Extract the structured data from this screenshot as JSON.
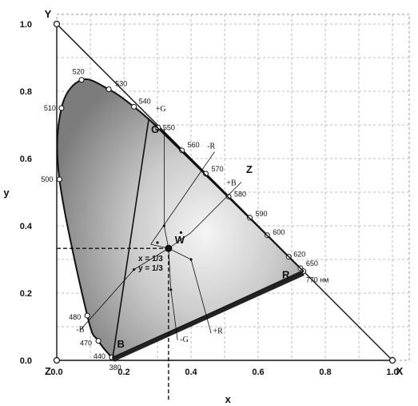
{
  "chart_data": {
    "type": "scatter",
    "title": "",
    "xlabel": "x",
    "ylabel": "y",
    "xlim": [
      0,
      1.05
    ],
    "ylim": [
      0,
      1.0
    ],
    "grid": true,
    "x_ticks": [
      "0.0",
      "0.2",
      "0.4",
      "0.6",
      "0.8",
      "1.0"
    ],
    "y_ticks": [
      "0.0",
      "0.2",
      "0.4",
      "0.6",
      "0.8",
      "1.0"
    ],
    "spectral_locus": [
      {
        "label": "380",
        "x": 0.174,
        "y": 0.005
      },
      {
        "label": "440",
        "x": 0.164,
        "y": 0.009
      },
      {
        "label": "470",
        "x": 0.124,
        "y": 0.058
      },
      {
        "label": "480",
        "x": 0.091,
        "y": 0.133
      },
      {
        "label": "500",
        "x": 0.008,
        "y": 0.538
      },
      {
        "label": "510",
        "x": 0.014,
        "y": 0.75
      },
      {
        "label": "520",
        "x": 0.074,
        "y": 0.834
      },
      {
        "label": "530",
        "x": 0.155,
        "y": 0.806
      },
      {
        "label": "540",
        "x": 0.23,
        "y": 0.754
      },
      {
        "label": "550",
        "x": 0.302,
        "y": 0.692
      },
      {
        "label": "560",
        "x": 0.373,
        "y": 0.624
      },
      {
        "label": "570",
        "x": 0.444,
        "y": 0.555
      },
      {
        "label": "580",
        "x": 0.512,
        "y": 0.487
      },
      {
        "label": "590",
        "x": 0.575,
        "y": 0.424
      },
      {
        "label": "600",
        "x": 0.627,
        "y": 0.372
      },
      {
        "label": "620",
        "x": 0.691,
        "y": 0.308
      },
      {
        "label": "650",
        "x": 0.726,
        "y": 0.274
      },
      {
        "label": "770 нм",
        "x": 0.735,
        "y": 0.265
      }
    ],
    "corner_points": [
      {
        "label": "Y",
        "x": 0.0,
        "y": 1.0
      },
      {
        "label": "Z",
        "x": 0.0,
        "y": 0.0
      },
      {
        "label": "X",
        "x": 1.0,
        "y": 0.0
      }
    ],
    "primaries": [
      {
        "label": "R",
        "x": 0.735,
        "y": 0.265
      },
      {
        "label": "G",
        "x": 0.274,
        "y": 0.717
      },
      {
        "label": "B",
        "x": 0.167,
        "y": 0.009
      }
    ],
    "white_point": {
      "label": "W",
      "x": 0.333,
      "y": 0.333,
      "note_x": "x = 1/3",
      "note_y": "y = 1/3"
    },
    "edge_label": "Z",
    "vectors": [
      {
        "label": "+G",
        "x": 0.32,
        "y": 0.4
      },
      {
        "label": "-R",
        "x": 0.3,
        "y": 0.35
      },
      {
        "label": "+B",
        "x": 0.37,
        "y": 0.38
      },
      {
        "label": "-B",
        "x": 0.23,
        "y": 0.27
      },
      {
        "label": "-G",
        "x": 0.34,
        "y": 0.21
      },
      {
        "label": "+R",
        "x": 0.4,
        "y": 0.3
      }
    ]
  }
}
